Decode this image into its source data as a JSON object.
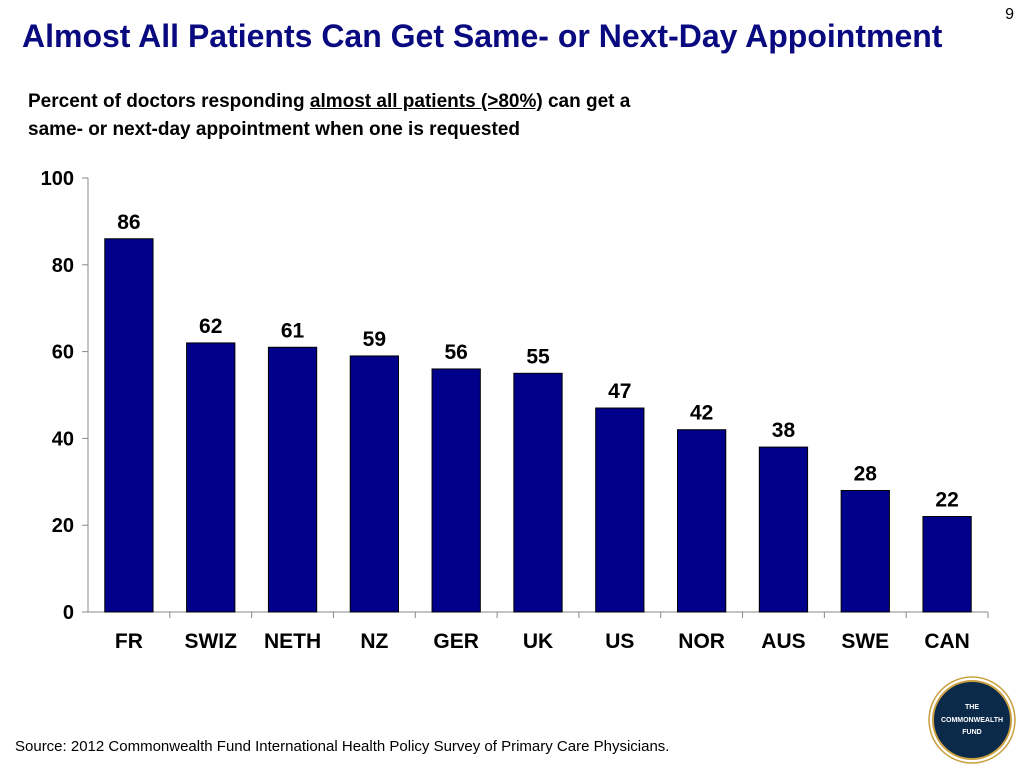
{
  "slide": {
    "number": "9"
  },
  "title": "Almost All Patients Can Get Same- or Next-Day Appointment",
  "subtitle": {
    "prefix": "Percent of doctors responding ",
    "emphasis": "almost all patients (>80%)",
    "suffix": " can get a",
    "line2": "same- or next-day appointment when one is requested"
  },
  "source": "Source: 2012 Commonwealth Fund International Health Policy Survey of Primary Care Physicians.",
  "logo": {
    "line1": "THE",
    "line2": "COMMONWEALTH",
    "line3": "FUND"
  },
  "colors": {
    "bar": "#00008b",
    "title": "#0a0a80",
    "logo_ring": "#c8a040",
    "logo_fill": "#0b2a4a"
  },
  "chart_data": {
    "type": "bar",
    "title": "",
    "xlabel": "",
    "ylabel": "",
    "categories": [
      "FR",
      "SWIZ",
      "NETH",
      "NZ",
      "GER",
      "UK",
      "US",
      "NOR",
      "AUS",
      "SWE",
      "CAN"
    ],
    "values": [
      86,
      62,
      61,
      59,
      56,
      55,
      47,
      42,
      38,
      28,
      22
    ],
    "ylim": [
      0,
      100
    ],
    "yticks": [
      0,
      20,
      40,
      60,
      80,
      100
    ],
    "grid": false,
    "data_labels": true
  }
}
